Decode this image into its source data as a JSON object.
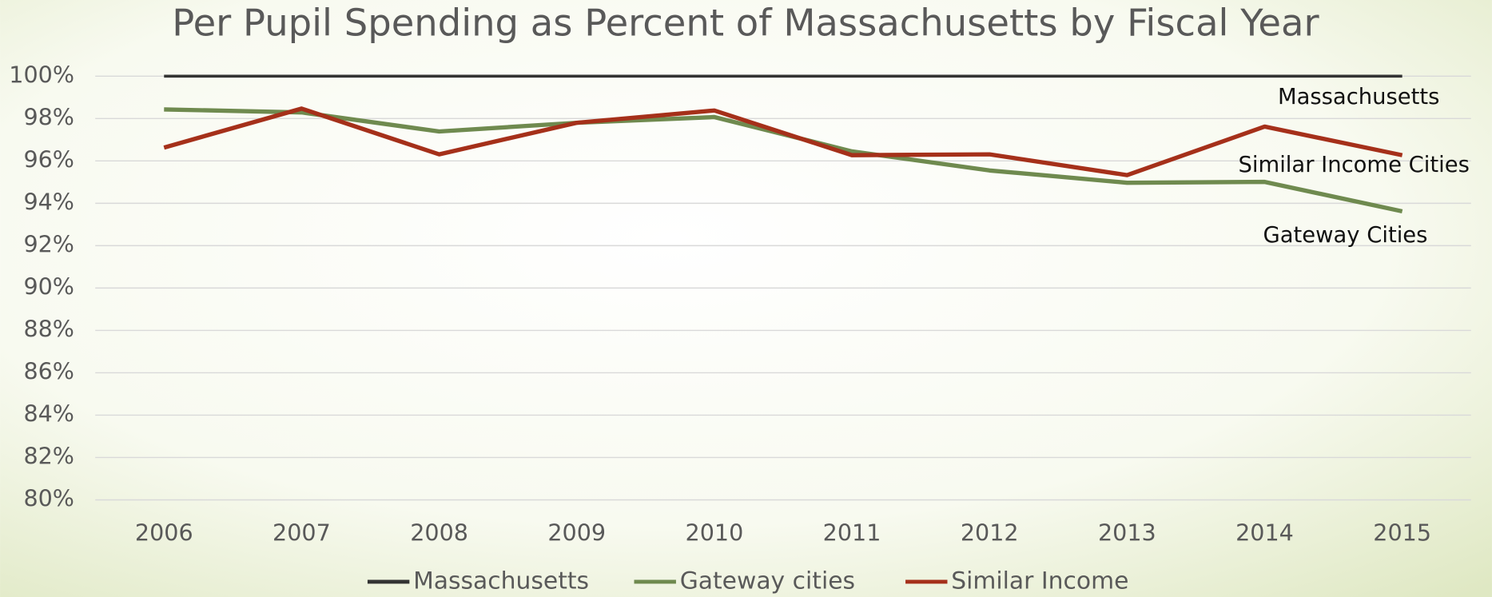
{
  "chart_data": {
    "type": "line",
    "title": "Per Pupil Spending as Percent of Massachusetts by Fiscal Year",
    "categories": [
      "2006",
      "2007",
      "2008",
      "2009",
      "2010",
      "2011",
      "2012",
      "2013",
      "2014",
      "2015"
    ],
    "series": [
      {
        "name": "Massachusetts",
        "color": "#333333",
        "values": [
          100,
          100,
          100,
          100,
          100,
          100,
          100,
          100,
          100,
          100
        ]
      },
      {
        "name": "Gateway cities",
        "color": "#6f8a4f",
        "values": [
          98.43,
          98.29,
          97.39,
          97.8,
          98.07,
          96.45,
          95.55,
          94.97,
          95.01,
          93.62
        ]
      },
      {
        "name": "Similar Income",
        "color": "#a5301a",
        "values": [
          96.63,
          98.47,
          96.31,
          97.8,
          98.38,
          96.27,
          96.31,
          95.33,
          97.62,
          96.27
        ]
      }
    ],
    "annotations": [
      "Massachusetts",
      "Similar Income Cities",
      "Gateway Cities"
    ],
    "ylim": [
      80,
      100
    ],
    "yticks": [
      {
        "value": 80,
        "label": "80%"
      },
      {
        "value": 82,
        "label": "82%"
      },
      {
        "value": 84,
        "label": "84%"
      },
      {
        "value": 86,
        "label": "86%"
      },
      {
        "value": 88,
        "label": "88%"
      },
      {
        "value": 90,
        "label": "90%"
      },
      {
        "value": 92,
        "label": "92%"
      },
      {
        "value": 94,
        "label": "94%"
      },
      {
        "value": 96,
        "label": "96%"
      },
      {
        "value": 98,
        "label": "98%"
      },
      {
        "value": 100,
        "label": "100%"
      }
    ],
    "grid": true,
    "legend": "bottom"
  }
}
